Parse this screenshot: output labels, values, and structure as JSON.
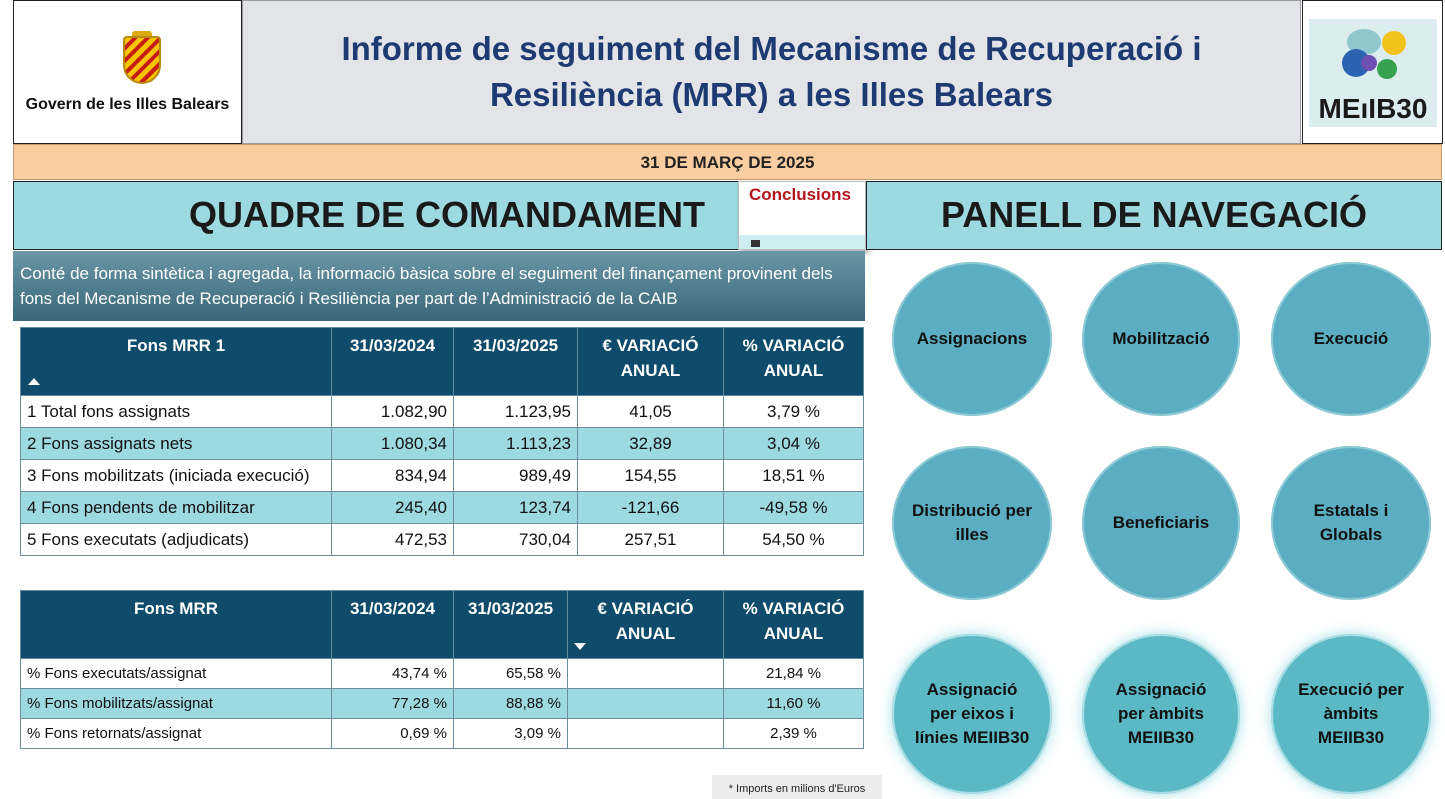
{
  "header": {
    "gov_label": "Govern de les Illes Balears",
    "title": "Informe de seguiment del Mecanisme de Recuperació i Resiliència (MRR) a les Illes Balears",
    "right_logo_text": "MEıIB30"
  },
  "date_bar": "31 DE MARÇ DE 2025",
  "dashboard": {
    "title": "QUADRE DE COMANDAMENT",
    "conclusions_label": "Conclusions",
    "description": "Conté de forma sintètica i agregada, la informació bàsica sobre el seguiment del finançament provinent dels fons del Mecanisme de Recuperació i Resiliència per part de l’Administració de la CAIB"
  },
  "nav_panel": {
    "title": "PANELL DE NAVEGACIÓ",
    "buttons": [
      "Assignacions",
      "Mobilització",
      "Execució",
      "Distribució per illes",
      "Beneficiaris",
      "Estatals i Globals",
      "Assignació per eixos i línies MEIIB30",
      "Assignació per àmbits MEIIB30",
      "Execució per àmbits MEIIB30"
    ]
  },
  "table1": {
    "headers": [
      "Fons MRR 1",
      "31/03/2024",
      "31/03/2025",
      "€ VARIACIÓ ANUAL",
      "% VARIACIÓ ANUAL"
    ],
    "rows": [
      [
        "1 Total fons assignats",
        "1.082,90",
        "1.123,95",
        "41,05",
        "3,79 %"
      ],
      [
        "2 Fons assignats nets",
        "1.080,34",
        "1.113,23",
        "32,89",
        "3,04 %"
      ],
      [
        "3 Fons mobilitzats (iniciada execució)",
        "834,94",
        "989,49",
        "154,55",
        "18,51 %"
      ],
      [
        "4 Fons pendents de mobilitzar",
        "245,40",
        "123,74",
        "-121,66",
        "-49,58 %"
      ],
      [
        "5 Fons executats (adjudicats)",
        "472,53",
        "730,04",
        "257,51",
        "54,50 %"
      ]
    ]
  },
  "table2": {
    "headers": [
      "Fons MRR",
      "31/03/2024",
      "31/03/2025",
      "€ VARIACIÓ ANUAL",
      "% VARIACIÓ ANUAL"
    ],
    "rows": [
      [
        "% Fons executats/assignat",
        "43,74 %",
        "65,58 %",
        "",
        "21,84 %"
      ],
      [
        "% Fons mobilitzats/assignat",
        "77,28 %",
        "88,88 %",
        "",
        "11,60 %"
      ],
      [
        "% Fons retornats/assignat",
        "0,69 %",
        "3,09 %",
        "",
        "2,39 %"
      ]
    ]
  },
  "footnote": "* Imports en milions d'Euros"
}
